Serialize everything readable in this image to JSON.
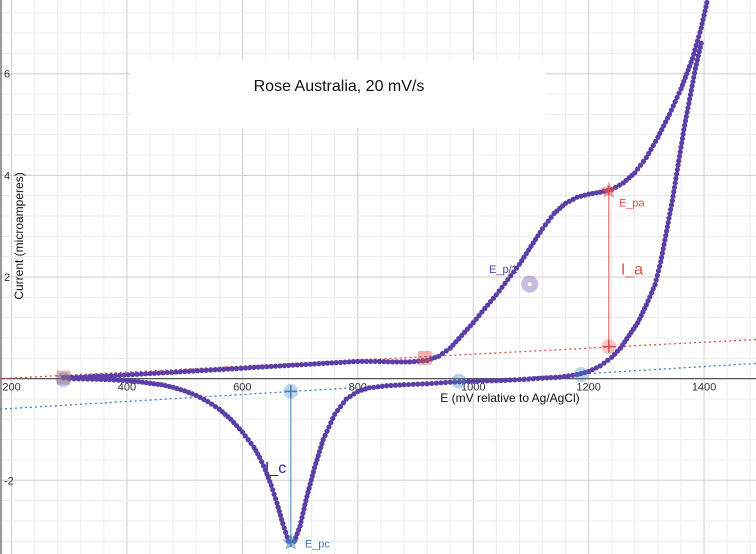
{
  "chart_data": {
    "type": "scatter",
    "title": "Rose Australia,  20 mV/s",
    "xlabel": "E (mV relative to Ag/AgCl)",
    "ylabel": "Current (microamperes)",
    "xlim": [
      180,
      1490
    ],
    "ylim": [
      -3.45,
      7.45
    ],
    "grid": true,
    "x_ticks": [
      {
        "value": 200,
        "label": "200"
      },
      {
        "value": 400,
        "label": "400"
      },
      {
        "value": 600,
        "label": "600"
      },
      {
        "value": 800,
        "label": "800"
      },
      {
        "value": 1000,
        "label": "1000"
      },
      {
        "value": 1200,
        "label": "1200"
      },
      {
        "value": 1400,
        "label": "1400"
      }
    ],
    "y_ticks": [
      {
        "value": 6,
        "label": "6"
      },
      {
        "value": 4,
        "label": "4"
      },
      {
        "value": 2,
        "label": "2"
      },
      {
        "value": -2,
        "label": "-2"
      }
    ],
    "series": [
      {
        "color": "#5b3fa6",
        "forward_scan": [
          [
            290,
            0.02
          ],
          [
            320,
            0.03
          ],
          [
            350,
            0.05
          ],
          [
            380,
            0.06
          ],
          [
            410,
            0.08
          ],
          [
            440,
            0.1
          ],
          [
            470,
            0.12
          ],
          [
            500,
            0.14
          ],
          [
            530,
            0.16
          ],
          [
            560,
            0.18
          ],
          [
            590,
            0.2
          ],
          [
            620,
            0.22
          ],
          [
            650,
            0.24
          ],
          [
            680,
            0.26
          ],
          [
            710,
            0.28
          ],
          [
            740,
            0.3
          ],
          [
            770,
            0.32
          ],
          [
            800,
            0.34
          ],
          [
            830,
            0.34
          ],
          [
            860,
            0.33
          ],
          [
            890,
            0.33
          ],
          [
            920,
            0.36
          ],
          [
            940,
            0.44
          ],
          [
            960,
            0.6
          ],
          [
            980,
            0.85
          ],
          [
            1000,
            1.1
          ],
          [
            1020,
            1.38
          ],
          [
            1040,
            1.65
          ],
          [
            1060,
            1.95
          ],
          [
            1080,
            2.25
          ],
          [
            1100,
            2.6
          ],
          [
            1120,
            2.95
          ],
          [
            1140,
            3.25
          ],
          [
            1160,
            3.45
          ],
          [
            1180,
            3.57
          ],
          [
            1200,
            3.63
          ],
          [
            1220,
            3.67
          ],
          [
            1240,
            3.72
          ],
          [
            1260,
            3.85
          ],
          [
            1280,
            4.05
          ],
          [
            1300,
            4.35
          ],
          [
            1320,
            4.75
          ],
          [
            1340,
            5.2
          ],
          [
            1360,
            5.7
          ],
          [
            1380,
            6.3
          ],
          [
            1395,
            6.9
          ],
          [
            1405,
            7.4
          ]
        ],
        "reverse_scan": [
          [
            1395,
            6.6
          ],
          [
            1385,
            6.1
          ],
          [
            1375,
            5.5
          ],
          [
            1365,
            4.9
          ],
          [
            1355,
            4.2
          ],
          [
            1345,
            3.5
          ],
          [
            1335,
            2.9
          ],
          [
            1325,
            2.3
          ],
          [
            1315,
            1.85
          ],
          [
            1300,
            1.45
          ],
          [
            1285,
            1.1
          ],
          [
            1270,
            0.85
          ],
          [
            1255,
            0.6
          ],
          [
            1240,
            0.42
          ],
          [
            1220,
            0.25
          ],
          [
            1200,
            0.14
          ],
          [
            1180,
            0.08
          ],
          [
            1150,
            0.03
          ],
          [
            1120,
            0.01
          ],
          [
            1080,
            -0.02
          ],
          [
            1040,
            -0.04
          ],
          [
            1000,
            -0.05
          ],
          [
            960,
            -0.07
          ],
          [
            920,
            -0.1
          ],
          [
            880,
            -0.12
          ],
          [
            850,
            -0.14
          ],
          [
            820,
            -0.18
          ],
          [
            800,
            -0.25
          ],
          [
            780,
            -0.4
          ],
          [
            760,
            -0.7
          ],
          [
            740,
            -1.2
          ],
          [
            725,
            -1.75
          ],
          [
            710,
            -2.4
          ],
          [
            700,
            -2.9
          ],
          [
            690,
            -3.2
          ],
          [
            680,
            -3.2
          ],
          [
            670,
            -2.85
          ],
          [
            660,
            -2.45
          ],
          [
            650,
            -2.1
          ],
          [
            640,
            -1.8
          ],
          [
            630,
            -1.55
          ],
          [
            620,
            -1.35
          ],
          [
            600,
            -1.05
          ],
          [
            580,
            -0.8
          ],
          [
            560,
            -0.6
          ],
          [
            540,
            -0.45
          ],
          [
            520,
            -0.33
          ],
          [
            500,
            -0.24
          ],
          [
            480,
            -0.17
          ],
          [
            460,
            -0.12
          ],
          [
            440,
            -0.09
          ],
          [
            420,
            -0.06
          ],
          [
            400,
            -0.04
          ],
          [
            370,
            -0.02
          ],
          [
            340,
            -0.01
          ],
          [
            300,
            0.0
          ]
        ]
      }
    ],
    "baselines": [
      {
        "name": "anodic baseline",
        "color": "#d9534f",
        "points": [
          [
            180,
            0.0
          ],
          [
            1490,
            0.77
          ]
        ]
      },
      {
        "name": "cathodic baseline",
        "color": "#3d7fbf",
        "points": [
          [
            180,
            -0.6
          ],
          [
            1490,
            0.3
          ]
        ]
      }
    ],
    "annotations": [
      {
        "label": "E_pa",
        "color": "#d9534f",
        "marker": "star",
        "x": 1235,
        "y": 3.7
      },
      {
        "label": "E_pc",
        "color": "#3d7fbf",
        "marker": "star",
        "x": 684,
        "y": -3.22
      },
      {
        "label": "E_p/2",
        "color": "#5b3fa6",
        "marker": "circle",
        "x": 1098,
        "y": 1.86
      },
      {
        "label": "",
        "color": "#d9534f",
        "marker": "cross",
        "x": 1235,
        "y": 0.63
      },
      {
        "label": "",
        "color": "#3d7fbf",
        "marker": "cross",
        "x": 684,
        "y": -0.25
      },
      {
        "label": "",
        "color": "#d9534f",
        "marker": "square",
        "x": 290,
        "y": 0.02
      },
      {
        "label": "",
        "color": "#d9534f",
        "marker": "square",
        "x": 916,
        "y": 0.41
      },
      {
        "label": "",
        "color": "#3d7fbf",
        "marker": "circle",
        "x": 290,
        "y": -0.02
      },
      {
        "label": "",
        "color": "#3d7fbf",
        "marker": "circle",
        "x": 975,
        "y": -0.05
      },
      {
        "label": "",
        "color": "#3d7fbf",
        "marker": "circle",
        "x": 1187,
        "y": 0.08
      }
    ],
    "peak_currents": [
      {
        "label": "I_a",
        "color": "#d9534f",
        "x": 1235,
        "y_top": 3.7,
        "y_bottom": 0.63
      },
      {
        "label": "I_c",
        "color": "#2323a8",
        "x": 684,
        "y_top": -0.25,
        "y_bottom": -3.22
      }
    ]
  }
}
